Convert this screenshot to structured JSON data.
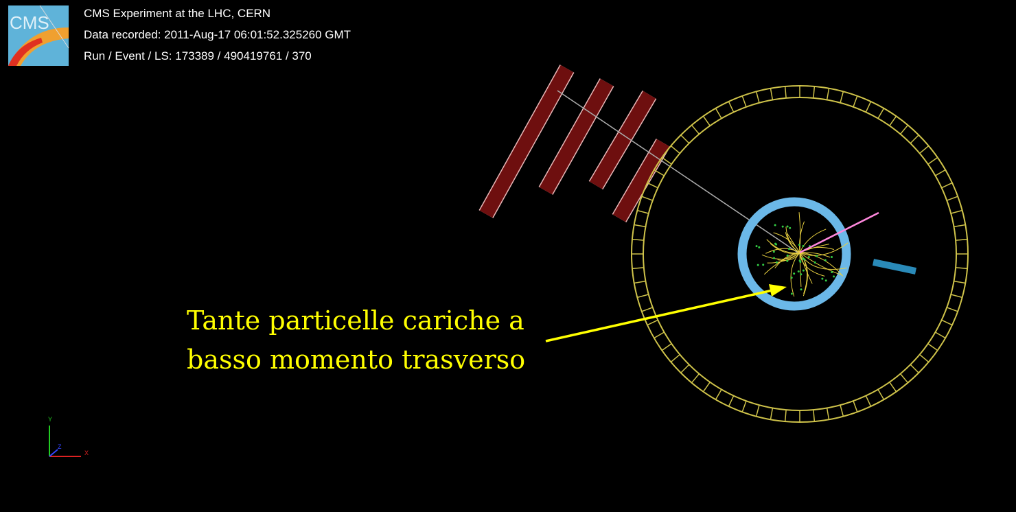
{
  "header": {
    "logo": "CMS",
    "lines": [
      "CMS Experiment at the LHC, CERN",
      "Data recorded: 2011-Aug-17 06:01:52.325260 GMT",
      "Run / Event / LS: 173389 / 490419761 / 370"
    ]
  },
  "annotation": {
    "lines": [
      "Tante particelle cariche a",
      "basso momento trasverso"
    ]
  },
  "axes": {
    "y": "Y",
    "x": "X",
    "z": "Z"
  }
}
